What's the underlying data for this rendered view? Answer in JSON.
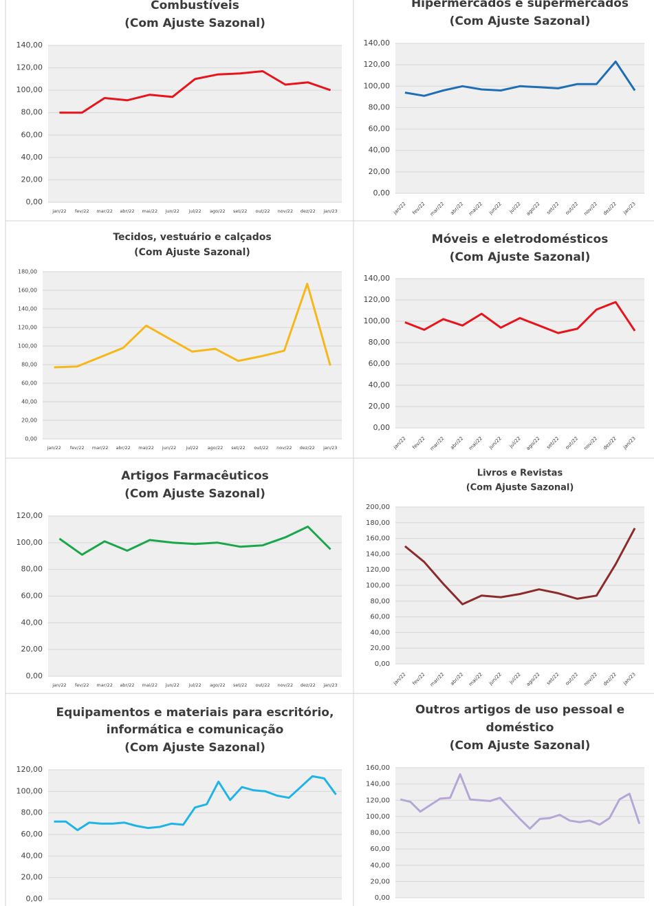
{
  "chart_data": [
    {
      "type": "line",
      "title": [
        "Combustíveis"
      ],
      "subtitle": "(Com Ajuste Sazonal)",
      "categories": [
        "jan/22",
        "fev/22",
        "mar/22",
        "abr/22",
        "mai/22",
        "jun/22",
        "jul/22",
        "ago/22",
        "set/22",
        "out/22",
        "nov/22",
        "dez/22",
        "jan/23"
      ],
      "series": [
        {
          "name": "Combustíveis",
          "color": "#e8141b",
          "values": [
            80,
            80,
            93,
            91,
            96,
            94,
            110,
            114,
            115,
            117,
            105,
            107,
            100
          ]
        }
      ],
      "ylim": [
        0,
        140
      ],
      "yticks": [
        {
          "value": 0,
          "label": "0,00"
        },
        {
          "value": 20,
          "label": "20,00"
        },
        {
          "value": 40,
          "label": "40,00"
        },
        {
          "value": 60,
          "label": "60,00"
        },
        {
          "value": 80,
          "label": "80,00"
        },
        {
          "value": 100,
          "label": "100,00"
        },
        {
          "value": 120,
          "label": "120,00"
        },
        {
          "value": 140,
          "label": "140,00"
        }
      ],
      "grid": true,
      "rotate_labels": false
    },
    {
      "type": "line",
      "title": [
        "Hipermercados e supermercados"
      ],
      "subtitle": "(Com Ajuste Sazonal)",
      "categories": [
        "jan/22",
        "fev/22",
        "mar/22",
        "abr/22",
        "mai/22",
        "jun/22",
        "jul/22",
        "ago/22",
        "set/22",
        "out/22",
        "nov/22",
        "dez/22",
        "jan/23"
      ],
      "series": [
        {
          "name": "Hipermercados e supermercados",
          "color": "#1f6db5",
          "values": [
            94,
            91,
            96,
            100,
            97,
            96,
            100,
            99,
            98,
            102,
            102,
            123,
            96
          ]
        }
      ],
      "ylim": [
        0,
        140
      ],
      "yticks": [
        {
          "value": 0,
          "label": "0,00"
        },
        {
          "value": 20,
          "label": "20,00"
        },
        {
          "value": 40,
          "label": "40,00"
        },
        {
          "value": 60,
          "label": "60,00"
        },
        {
          "value": 80,
          "label": "80,00"
        },
        {
          "value": 100,
          "label": "100,00"
        },
        {
          "value": 120,
          "label": "120,00"
        },
        {
          "value": 140,
          "label": "140,00"
        }
      ],
      "grid": true,
      "rotate_labels": true
    },
    {
      "type": "line",
      "title": [
        "Tecidos, vestuário e calçados"
      ],
      "subtitle": "(Com Ajuste Sazonal)",
      "categories": [
        "jan/22",
        "fev/22",
        "mar/22",
        "abr/22",
        "mai/22",
        "jun/22",
        "jul/22",
        "ago/22",
        "set/22",
        "out/22",
        "nov/22",
        "dez/22",
        "jan/23"
      ],
      "series": [
        {
          "name": "Tecidos, vestuário e calçados",
          "color": "#f5b71a",
          "values": [
            77,
            78,
            88,
            98,
            122,
            108,
            94,
            97,
            84,
            89,
            95,
            167,
            79
          ]
        }
      ],
      "ylim": [
        0,
        180
      ],
      "yticks": [
        {
          "value": 0,
          "label": "0,00"
        },
        {
          "value": 20,
          "label": "20,00"
        },
        {
          "value": 40,
          "label": "40,00"
        },
        {
          "value": 60,
          "label": "60,00"
        },
        {
          "value": 80,
          "label": "80,00"
        },
        {
          "value": 100,
          "label": "100,00"
        },
        {
          "value": 120,
          "label": "120,00"
        },
        {
          "value": 140,
          "label": "140,00"
        },
        {
          "value": 160,
          "label": "160,00"
        },
        {
          "value": 180,
          "label": "180,00"
        }
      ],
      "grid": true,
      "rotate_labels": false
    },
    {
      "type": "line",
      "title": [
        "Móveis e eletrodomésticos"
      ],
      "subtitle": "(Com Ajuste Sazonal)",
      "categories": [
        "jan/22",
        "fev/22",
        "mar/22",
        "abr/22",
        "mai/22",
        "jun/22",
        "jul/22",
        "ago/22",
        "set/22",
        "out/22",
        "nov/22",
        "dez/22",
        "jan/23"
      ],
      "series": [
        {
          "name": "Móveis e eletrodomésticos",
          "color": "#e8141b",
          "values": [
            99,
            92,
            102,
            96,
            107,
            94,
            103,
            96,
            89,
            93,
            111,
            118,
            91
          ]
        }
      ],
      "ylim": [
        0,
        140
      ],
      "yticks": [
        {
          "value": 0,
          "label": "0,00"
        },
        {
          "value": 20,
          "label": "20,00"
        },
        {
          "value": 40,
          "label": "40,00"
        },
        {
          "value": 60,
          "label": "60,00"
        },
        {
          "value": 80,
          "label": "80,00"
        },
        {
          "value": 100,
          "label": "100,00"
        },
        {
          "value": 120,
          "label": "120,00"
        },
        {
          "value": 140,
          "label": "140,00"
        }
      ],
      "grid": true,
      "rotate_labels": true
    },
    {
      "type": "line",
      "title": [
        "Artigos Farmacêuticos"
      ],
      "subtitle": "(Com Ajuste Sazonal)",
      "categories": [
        "jan/22",
        "fev/22",
        "mar/22",
        "abr/22",
        "mai/22",
        "jun/22",
        "jul/22",
        "ago/22",
        "set/22",
        "out/22",
        "nov/22",
        "dez/22",
        "jan/23"
      ],
      "series": [
        {
          "name": "Artigos Farmacêuticos",
          "color": "#1aa64a",
          "values": [
            103,
            91,
            101,
            94,
            102,
            100,
            99,
            100,
            97,
            98,
            104,
            112,
            95
          ]
        }
      ],
      "ylim": [
        0,
        120
      ],
      "yticks": [
        {
          "value": 0,
          "label": "0,00"
        },
        {
          "value": 20,
          "label": "20,00"
        },
        {
          "value": 40,
          "label": "40,00"
        },
        {
          "value": 60,
          "label": "60,00"
        },
        {
          "value": 80,
          "label": "80,00"
        },
        {
          "value": 100,
          "label": "100,00"
        },
        {
          "value": 120,
          "label": "120,00"
        }
      ],
      "grid": true,
      "rotate_labels": false
    },
    {
      "type": "line",
      "title": [
        "Livros e Revistas"
      ],
      "subtitle": "(Com Ajuste Sazonal)",
      "categories": [
        "jan/22",
        "fev/22",
        "mar/22",
        "abr/22",
        "mai/22",
        "jun/22",
        "jul/22",
        "ago/22",
        "set/22",
        "out/22",
        "nov/22",
        "dez/22",
        "jan/23"
      ],
      "series": [
        {
          "name": "Livros e Revistas",
          "color": "#8b2b2b",
          "values": [
            150,
            130,
            102,
            76,
            87,
            85,
            89,
            95,
            90,
            83,
            87,
            127,
            173
          ]
        }
      ],
      "ylim": [
        0,
        200
      ],
      "yticks": [
        {
          "value": 0,
          "label": "0,00"
        },
        {
          "value": 20,
          "label": "20,00"
        },
        {
          "value": 40,
          "label": "40,00"
        },
        {
          "value": 60,
          "label": "60,00"
        },
        {
          "value": 80,
          "label": "80,00"
        },
        {
          "value": 100,
          "label": "100,00"
        },
        {
          "value": 120,
          "label": "120,00"
        },
        {
          "value": 140,
          "label": "140,00"
        },
        {
          "value": 160,
          "label": "160,00"
        },
        {
          "value": 180,
          "label": "180,00"
        },
        {
          "value": 200,
          "label": "200,00"
        }
      ],
      "grid": true,
      "rotate_labels": true
    },
    {
      "type": "line",
      "title": [
        "Equipamentos e materiais para escritório,",
        "informática e comunicação"
      ],
      "subtitle": "(Com Ajuste Sazonal)",
      "categories": [
        null,
        null,
        null,
        null,
        null,
        null,
        null,
        null,
        null,
        null,
        null,
        null,
        null,
        null,
        null,
        null,
        null,
        null,
        null,
        null,
        null,
        null,
        null,
        null,
        null
      ],
      "series": [
        {
          "name": "Equipamentos e materiais para escritório, informática e comunicação",
          "color": "#1fb4e8",
          "values": [
            72,
            72,
            64,
            71,
            70,
            70,
            71,
            68,
            66,
            67,
            70,
            69,
            85,
            88,
            109,
            92,
            104,
            101,
            100,
            96,
            94,
            104,
            114,
            112,
            97
          ]
        }
      ],
      "ylim": [
        0,
        120
      ],
      "yticks": [
        {
          "value": 0,
          "label": "0,00"
        },
        {
          "value": 20,
          "label": "20,00"
        },
        {
          "value": 40,
          "label": "40,00"
        },
        {
          "value": 60,
          "label": "60,00"
        },
        {
          "value": 80,
          "label": "80,00"
        },
        {
          "value": 100,
          "label": "100,00"
        },
        {
          "value": 120,
          "label": "120,00"
        }
      ],
      "grid": true,
      "rotate_labels": true
    },
    {
      "type": "line",
      "title": [
        "Outros artigos de uso pessoal e",
        "doméstico"
      ],
      "subtitle": "(Com Ajuste Sazonal)",
      "categories": [
        null,
        null,
        null,
        null,
        null,
        null,
        null,
        null,
        null,
        null,
        null,
        null,
        null,
        null,
        null,
        null,
        null,
        null,
        null,
        null,
        null,
        null,
        null,
        null,
        null
      ],
      "series": [
        {
          "name": "Outros artigos de uso pessoal e doméstico",
          "color": "#b4a7d6",
          "values": [
            121,
            118,
            106,
            114,
            122,
            123,
            152,
            121,
            120,
            119,
            123,
            110,
            97,
            85,
            97,
            98,
            102,
            95,
            93,
            95,
            90,
            98,
            121,
            128,
            91
          ]
        }
      ],
      "ylim": [
        0,
        160
      ],
      "yticks": [
        {
          "value": 0,
          "label": "0,00"
        },
        {
          "value": 20,
          "label": "20,00"
        },
        {
          "value": 40,
          "label": "40,00"
        },
        {
          "value": 60,
          "label": "60,00"
        },
        {
          "value": 80,
          "label": "80,00"
        },
        {
          "value": 100,
          "label": "100,00"
        },
        {
          "value": 120,
          "label": "120,00"
        },
        {
          "value": 140,
          "label": "140,00"
        },
        {
          "value": 160,
          "label": "160,00"
        }
      ],
      "grid": true,
      "rotate_labels": true
    }
  ]
}
